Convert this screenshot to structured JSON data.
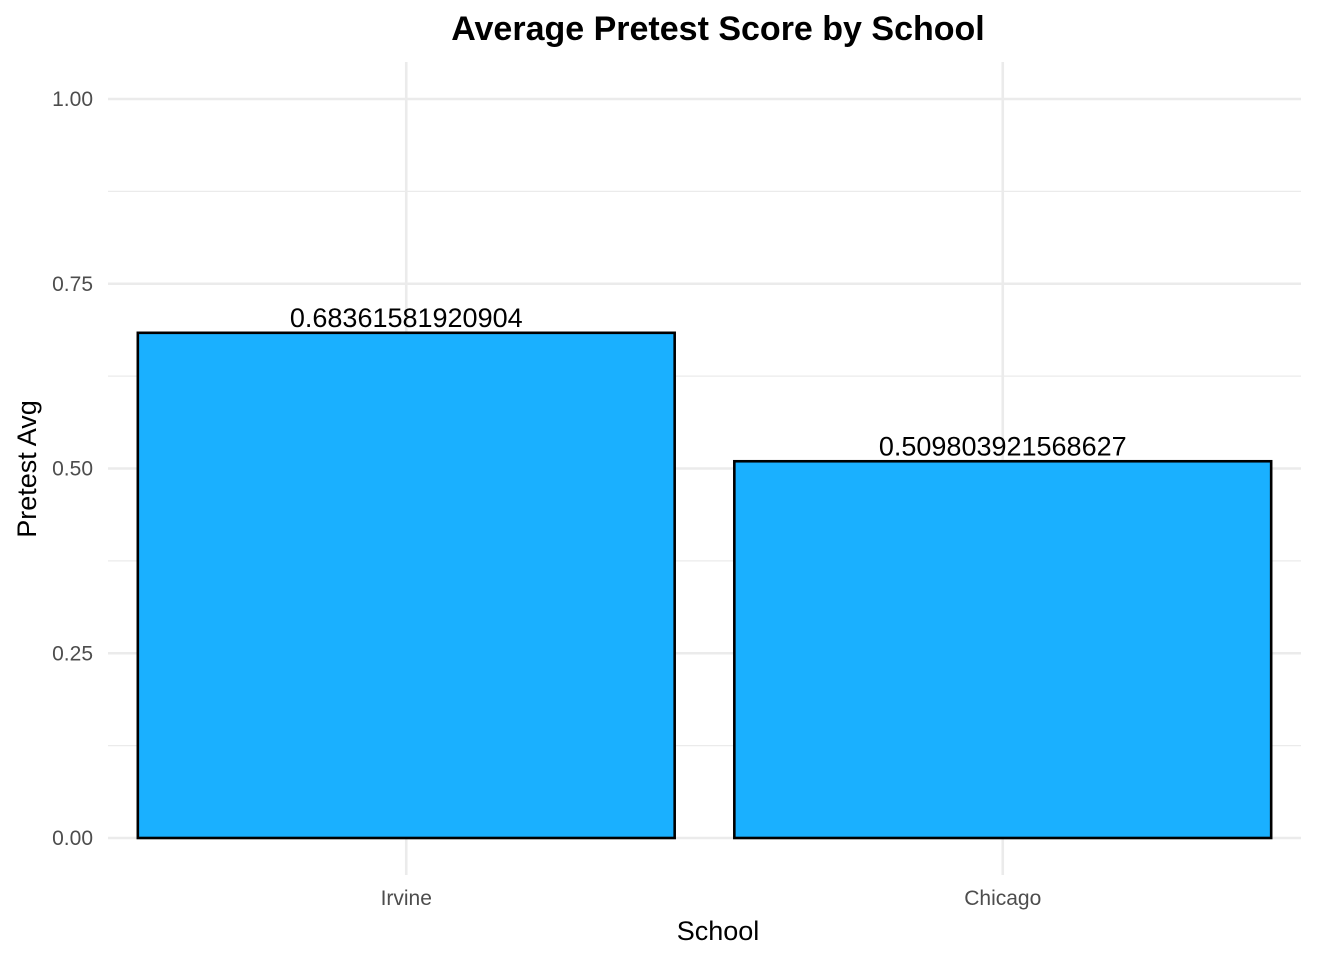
{
  "chart_data": {
    "type": "bar",
    "title": "Average Pretest Score by School",
    "xlabel": "School",
    "ylabel": "Pretest Avg",
    "categories": [
      "Irvine",
      "Chicago"
    ],
    "values": [
      0.68361581920904,
      0.509803921568627
    ],
    "value_labels": [
      "0.68361581920904",
      "0.509803921568627"
    ],
    "ylim": [
      0,
      1.0
    ],
    "y_ticks": [
      0.0,
      0.25,
      0.5,
      0.75,
      1.0
    ],
    "y_tick_labels": [
      "0.00",
      "0.25",
      "0.50",
      "0.75",
      "1.00"
    ],
    "grid": true,
    "legend": "none",
    "colors": {
      "bar_fill": "#1ab0ff",
      "bar_outline": "#000000",
      "grid": "#ebebeb"
    }
  }
}
